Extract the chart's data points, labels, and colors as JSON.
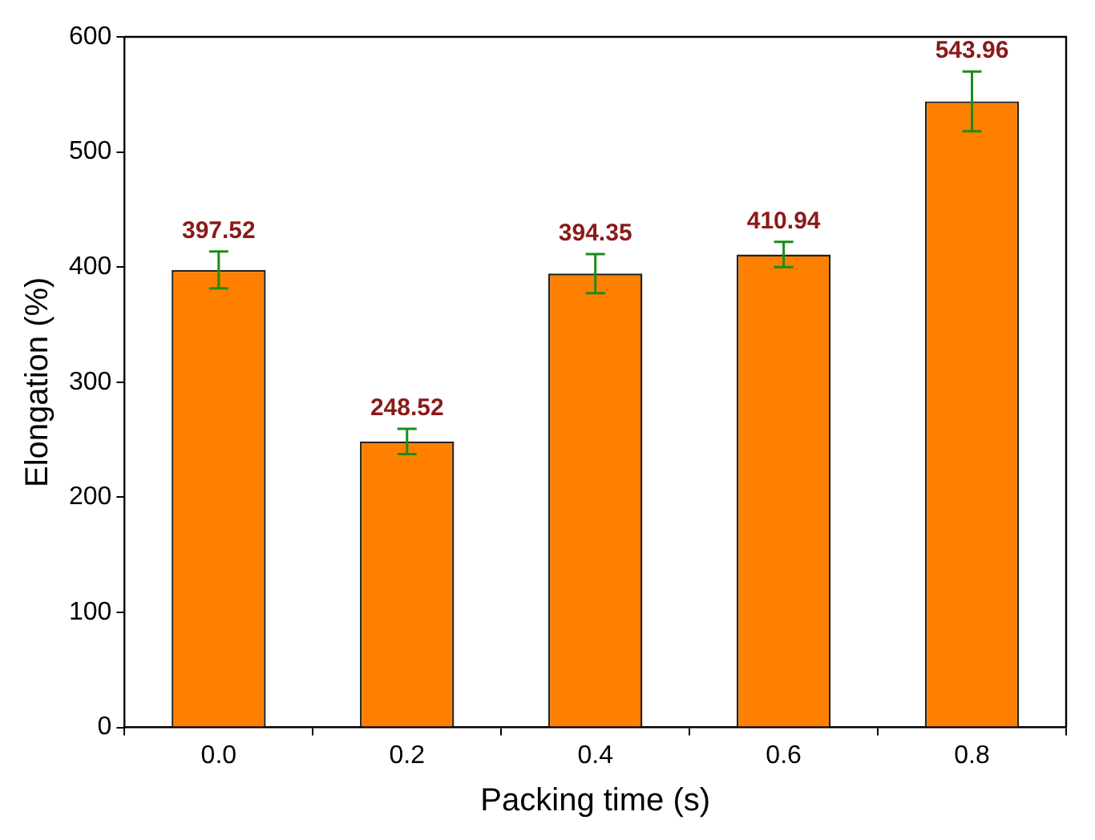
{
  "chart_data": {
    "type": "bar",
    "xlabel": "Packing time (s)",
    "ylabel": "Elongation (%)",
    "categories": [
      "0.0",
      "0.2",
      "0.4",
      "0.6",
      "0.8"
    ],
    "values": [
      397.52,
      248.52,
      394.35,
      410.94,
      543.96
    ],
    "errors": [
      16,
      11,
      17,
      11,
      26
    ],
    "color": "#ff8000",
    "data_labels": true,
    "ylim": [
      0,
      600
    ],
    "yticks": [
      0,
      100,
      200,
      300,
      400,
      500,
      600
    ],
    "grid": false,
    "legend": false
  }
}
